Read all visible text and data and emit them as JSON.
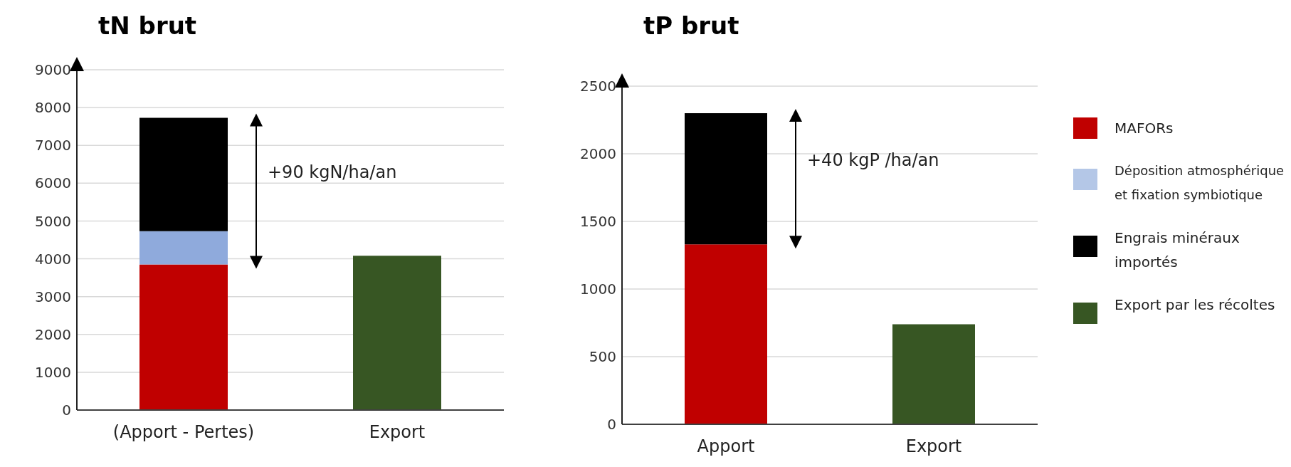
{
  "chart_data": [
    {
      "type": "bar",
      "title": "tN brut",
      "categories": [
        "(Apport - Pertes)",
        "Export"
      ],
      "stacked": true,
      "legend": false,
      "grid": "y",
      "ylim": [
        0,
        9000
      ],
      "yticks": [
        0,
        1000,
        2000,
        3000,
        4000,
        5000,
        6000,
        7000,
        8000,
        9000
      ],
      "annotations": [
        "+90 kgN/ha/an"
      ],
      "series": [
        {
          "color": "#c00000",
          "values": [
            3850,
            null
          ]
        },
        {
          "color": "#8faadc",
          "values": [
            880,
            null
          ]
        },
        {
          "color": "#000000",
          "values": [
            3000,
            null
          ]
        },
        {
          "color": "#375623",
          "values": [
            null,
            4080
          ]
        }
      ]
    },
    {
      "type": "bar",
      "title": "tP brut",
      "categories": [
        "Apport",
        "Export"
      ],
      "stacked": true,
      "legend": "right",
      "grid": "y",
      "ylim": [
        0,
        2500
      ],
      "yticks": [
        0,
        500,
        1000,
        1500,
        2000,
        2500
      ],
      "annotations": [
        "+40 kgP /ha/an"
      ],
      "series": [
        {
          "name": "MAFORs",
          "color": "#c00000",
          "values": [
            1330,
            null
          ]
        },
        {
          "name": "Déposition atmosphérique et fixation symbiotique",
          "color": "#b4c7e7",
          "values": [
            null,
            null
          ]
        },
        {
          "name": "Engrais minéraux importés",
          "color": "#000000",
          "values": [
            970,
            null
          ]
        },
        {
          "name": "Export par les récoltes",
          "color": "#375623",
          "values": [
            null,
            740
          ]
        }
      ]
    }
  ]
}
